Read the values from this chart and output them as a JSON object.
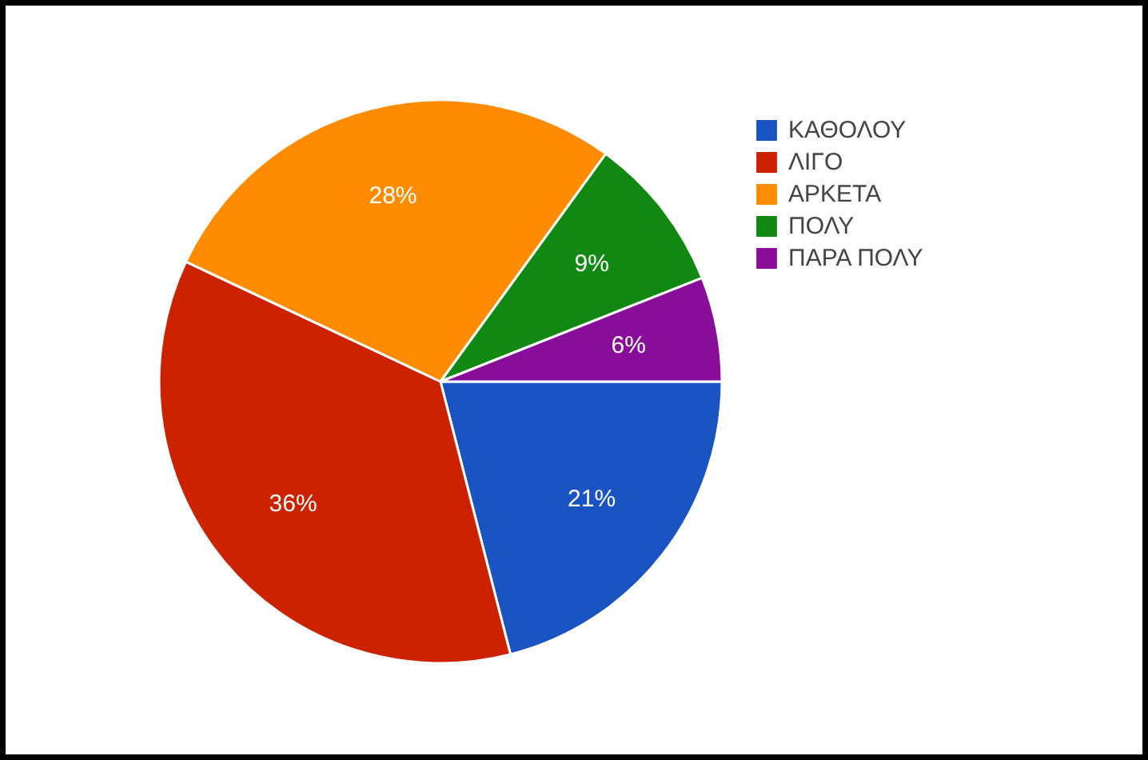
{
  "chart_data": {
    "type": "pie",
    "categories": [
      "ΚΑΘΟΛΟΥ",
      "ΛΙΓΟ",
      "ΑΡΚΕΤΑ",
      "ΠΟΛΥ",
      "ΠΑΡΑ ΠΟΛΥ"
    ],
    "values": [
      21,
      36,
      28,
      9,
      6
    ],
    "colors": [
      "#1a53c2",
      "#cc2200",
      "#ff8c00",
      "#118811",
      "#880e99"
    ],
    "value_labels": [
      "21%",
      "36%",
      "28%",
      "9%",
      "6%"
    ],
    "legend": "top right"
  }
}
